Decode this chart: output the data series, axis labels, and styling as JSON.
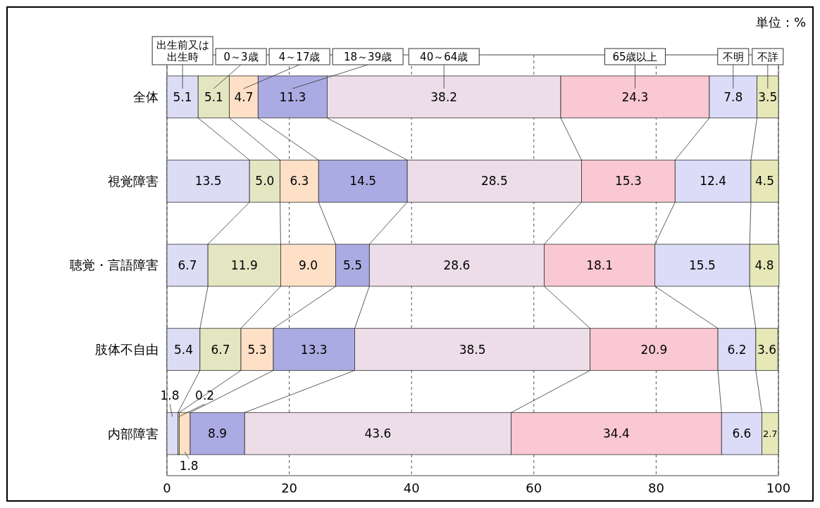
{
  "chart_data": {
    "type": "bar",
    "orientation": "horizontal",
    "stacked": true,
    "categories": [
      "全体",
      "視覚障害",
      "聴覚・言語障害",
      "肢体不自由",
      "内部障害"
    ],
    "series": [
      {
        "name": "出生前又は出生時",
        "color": "#dcdcf5",
        "values": [
          5.1,
          13.5,
          6.7,
          5.4,
          1.8
        ],
        "value_labels": [
          "5.1",
          "13.5",
          "6.7",
          "5.4",
          "1.8"
        ]
      },
      {
        "name": "0～3歳",
        "color": "#e4e6c2",
        "values": [
          5.1,
          5.0,
          11.9,
          6.7,
          0.2
        ],
        "value_labels": [
          "5.1",
          "5.0",
          "11.9",
          "6.7",
          "0.2"
        ]
      },
      {
        "name": "4～17歳",
        "color": "#fde0c6",
        "values": [
          4.7,
          6.3,
          9.0,
          5.3,
          1.8
        ],
        "value_labels": [
          "4.7",
          "6.3",
          "9.0",
          "5.3",
          "1.8"
        ]
      },
      {
        "name": "18～39歳",
        "color": "#ababe3",
        "values": [
          11.3,
          14.5,
          5.5,
          13.3,
          8.9
        ],
        "value_labels": [
          "11.3",
          "14.5",
          "5.5",
          "13.3",
          "8.9"
        ]
      },
      {
        "name": "40～64歳",
        "color": "#ecdde8",
        "values": [
          38.2,
          28.5,
          28.6,
          38.5,
          43.6
        ],
        "value_labels": [
          "38.2",
          "28.5",
          "28.6",
          "38.5",
          "43.6"
        ]
      },
      {
        "name": "65歳以上",
        "color": "#fac8d2",
        "values": [
          24.3,
          15.3,
          18.1,
          20.9,
          34.4
        ],
        "value_labels": [
          "24.3",
          "15.3",
          "18.1",
          "20.9",
          "34.4"
        ]
      },
      {
        "name": "不明",
        "color": "#dcdcf8",
        "values": [
          7.8,
          12.4,
          15.5,
          6.2,
          6.6
        ],
        "value_labels": [
          "7.8",
          "12.4",
          "15.5",
          "6.2",
          "6.6"
        ]
      },
      {
        "name": "不詳",
        "color": "#e6e8b8",
        "values": [
          3.5,
          4.5,
          4.8,
          3.6,
          2.7
        ],
        "value_labels": [
          "3.5",
          "4.5",
          "4.8",
          "3.6",
          "2.7"
        ]
      }
    ],
    "xlim": [
      0,
      100
    ],
    "xticks": [
      0,
      20,
      40,
      60,
      80,
      100
    ],
    "grid": "x",
    "legend": "top",
    "annotations": [
      "単位：%"
    ]
  }
}
